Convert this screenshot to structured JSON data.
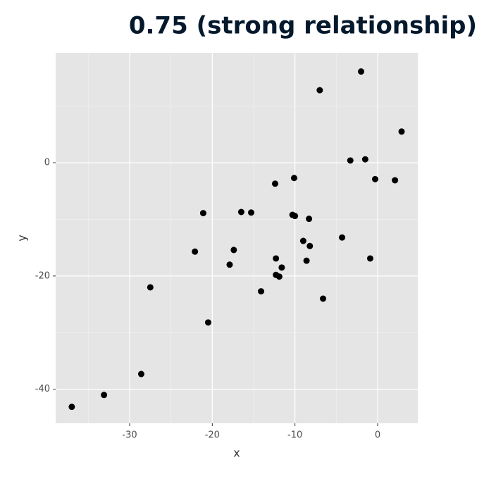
{
  "chart_data": {
    "type": "scatter",
    "title": "0.75 (strong relationship)",
    "x_label": "x",
    "y_label": "y",
    "x": [
      -37.0,
      -33.1,
      -28.6,
      -27.5,
      -22.1,
      -21.1,
      -20.5,
      -17.9,
      -17.4,
      -16.5,
      -15.3,
      -14.1,
      -12.4,
      -12.3,
      -12.3,
      -11.9,
      -11.6,
      -10.3,
      -10.0,
      -10.1,
      -9.0,
      -8.6,
      -8.3,
      -8.2,
      -7.0,
      -6.6,
      -4.3,
      -3.3,
      -2.0,
      -1.5,
      -0.9,
      -0.3,
      2.1,
      2.9
    ],
    "values": [
      -43.1,
      -41.0,
      -37.3,
      -22.0,
      -15.7,
      -8.9,
      -28.2,
      -18.0,
      -15.4,
      -8.7,
      -8.8,
      -22.7,
      -3.7,
      -16.9,
      -19.8,
      -20.1,
      -18.5,
      -9.2,
      -9.4,
      -2.7,
      -13.8,
      -17.3,
      -9.9,
      -14.7,
      12.8,
      -24.0,
      -13.2,
      0.4,
      16.1,
      0.6,
      -16.9,
      -2.9,
      -3.1,
      5.5
    ],
    "color": "#000000",
    "xlim": [
      -38.95,
      4.86
    ],
    "ylim": [
      -46.0,
      19.4
    ],
    "xticks": [
      -30,
      -20,
      -10,
      0
    ],
    "yticks": [
      -40,
      -20,
      0
    ],
    "x_minor_ticks": [
      -35,
      -25,
      -15,
      -5
    ],
    "y_minor_ticks": [
      -30,
      -10,
      10
    ],
    "grid": true
  }
}
